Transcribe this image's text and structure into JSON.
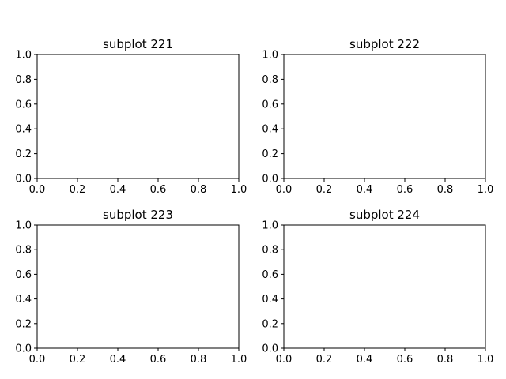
{
  "chart_data": [
    {
      "type": "scatter",
      "title": "subplot 221",
      "xlabel": "",
      "ylabel": "",
      "xlim": [
        0,
        1
      ],
      "ylim": [
        0,
        1
      ],
      "grid": false,
      "xticks": [
        0.0,
        0.2,
        0.4,
        0.6,
        0.8,
        1.0
      ],
      "yticks": [
        0.0,
        0.2,
        0.4,
        0.6,
        0.8,
        1.0
      ],
      "xtick_labels": [
        "0.0",
        "0.2",
        "0.4",
        "0.6",
        "0.8",
        "1.0"
      ],
      "ytick_labels": [
        "0.0",
        "0.2",
        "0.4",
        "0.6",
        "0.8",
        "1.0"
      ],
      "series": []
    },
    {
      "type": "scatter",
      "title": "subplot 222",
      "xlabel": "",
      "ylabel": "",
      "xlim": [
        0,
        1
      ],
      "ylim": [
        0,
        1
      ],
      "grid": false,
      "xticks": [
        0.0,
        0.2,
        0.4,
        0.6,
        0.8,
        1.0
      ],
      "yticks": [
        0.0,
        0.2,
        0.4,
        0.6,
        0.8,
        1.0
      ],
      "xtick_labels": [
        "0.0",
        "0.2",
        "0.4",
        "0.6",
        "0.8",
        "1.0"
      ],
      "ytick_labels": [
        "0.0",
        "0.2",
        "0.4",
        "0.6",
        "0.8",
        "1.0"
      ],
      "series": []
    },
    {
      "type": "scatter",
      "title": "subplot 223",
      "xlabel": "",
      "ylabel": "",
      "xlim": [
        0,
        1
      ],
      "ylim": [
        0,
        1
      ],
      "grid": false,
      "xticks": [
        0.0,
        0.2,
        0.4,
        0.6,
        0.8,
        1.0
      ],
      "yticks": [
        0.0,
        0.2,
        0.4,
        0.6,
        0.8,
        1.0
      ],
      "xtick_labels": [
        "0.0",
        "0.2",
        "0.4",
        "0.6",
        "0.8",
        "1.0"
      ],
      "ytick_labels": [
        "0.0",
        "0.2",
        "0.4",
        "0.6",
        "0.8",
        "1.0"
      ],
      "series": []
    },
    {
      "type": "scatter",
      "title": "subplot 224",
      "xlabel": "",
      "ylabel": "",
      "xlim": [
        0,
        1
      ],
      "ylim": [
        0,
        1
      ],
      "grid": false,
      "xticks": [
        0.0,
        0.2,
        0.4,
        0.6,
        0.8,
        1.0
      ],
      "yticks": [
        0.0,
        0.2,
        0.4,
        0.6,
        0.8,
        1.0
      ],
      "xtick_labels": [
        "0.0",
        "0.2",
        "0.4",
        "0.6",
        "0.8",
        "1.0"
      ],
      "ytick_labels": [
        "0.0",
        "0.2",
        "0.4",
        "0.6",
        "0.8",
        "1.0"
      ],
      "series": []
    }
  ]
}
